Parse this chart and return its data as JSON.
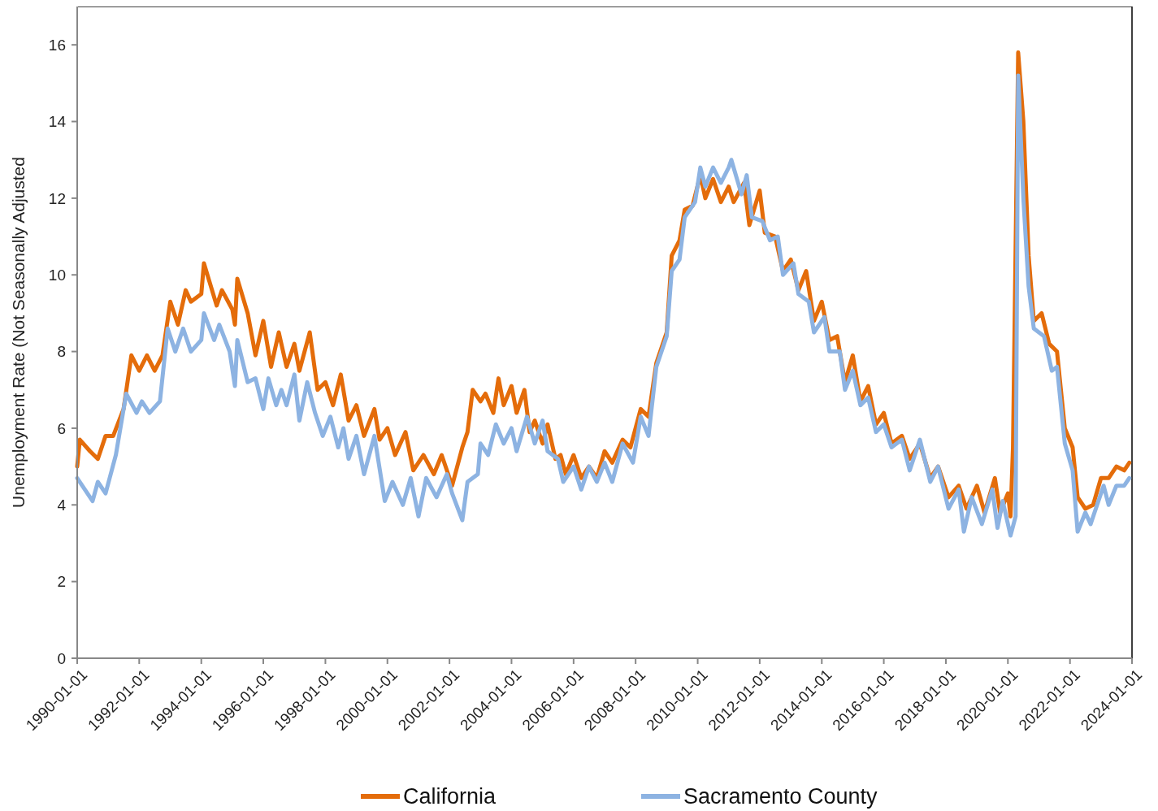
{
  "chart_data": {
    "type": "line",
    "ylabel": "Unemployment Rate (Not Seasonally Adjusted",
    "xlim": [
      "1990-01-01",
      "2024-01-01"
    ],
    "xticks": [
      "1990-01-01",
      "1992-01-01",
      "1994-01-01",
      "1996-01-01",
      "1998-01-01",
      "2000-01-01",
      "2002-01-01",
      "2004-01-01",
      "2006-01-01",
      "2008-01-01",
      "2010-01-01",
      "2012-01-01",
      "2014-01-01",
      "2016-01-01",
      "2018-01-01",
      "2020-01-01",
      "2022-01-01",
      "2024-01-01"
    ],
    "ylim": [
      0,
      17
    ],
    "yticks": [
      0,
      2,
      4,
      6,
      8,
      10,
      12,
      14,
      16
    ],
    "legend": "bottom",
    "series": [
      {
        "name": "California",
        "color": "#e46c0a",
        "x": [
          "1990-01",
          "1990-02",
          "1990-06",
          "1990-09",
          "1990-12",
          "1991-03",
          "1991-07",
          "1991-10",
          "1992-01",
          "1992-04",
          "1992-07",
          "1992-10",
          "1993-01",
          "1993-04",
          "1993-07",
          "1993-09",
          "1994-01",
          "1994-02",
          "1994-07",
          "1994-09",
          "1995-01",
          "1995-02",
          "1995-03",
          "1995-07",
          "1995-10",
          "1996-01",
          "1996-04",
          "1996-07",
          "1996-10",
          "1997-01",
          "1997-03",
          "1997-07",
          "1997-10",
          "1998-01",
          "1998-04",
          "1998-07",
          "1998-10",
          "1999-01",
          "1999-04",
          "1999-08",
          "1999-10",
          "2000-01",
          "2000-04",
          "2000-08",
          "2000-11",
          "2001-03",
          "2001-07",
          "2001-10",
          "2002-02",
          "2002-06",
          "2002-08",
          "2002-10",
          "2003-01",
          "2003-03",
          "2003-06",
          "2003-08",
          "2003-10",
          "2004-01",
          "2004-03",
          "2004-06",
          "2004-08",
          "2004-10",
          "2005-01",
          "2005-03",
          "2005-06",
          "2005-08",
          "2005-10",
          "2006-01",
          "2006-04",
          "2006-07",
          "2006-10",
          "2007-01",
          "2007-04",
          "2007-08",
          "2007-11",
          "2008-03",
          "2008-06",
          "2008-09",
          "2009-01",
          "2009-03",
          "2009-06",
          "2009-08",
          "2009-11",
          "2010-02",
          "2010-04",
          "2010-07",
          "2010-10",
          "2011-01",
          "2011-03",
          "2011-07",
          "2011-09",
          "2012-01",
          "2012-03",
          "2012-07",
          "2012-10",
          "2013-01",
          "2013-04",
          "2013-07",
          "2013-10",
          "2014-01",
          "2014-04",
          "2014-07",
          "2014-10",
          "2015-01",
          "2015-04",
          "2015-07",
          "2015-10",
          "2016-01",
          "2016-04",
          "2016-08",
          "2016-11",
          "2017-03",
          "2017-07",
          "2017-10",
          "2018-02",
          "2018-06",
          "2018-09",
          "2019-01",
          "2019-04",
          "2019-08",
          "2019-10",
          "2020-01",
          "2020-02",
          "2020-03",
          "2020-05",
          "2020-07",
          "2020-09",
          "2020-11",
          "2021-02",
          "2021-05",
          "2021-08",
          "2021-11",
          "2022-02",
          "2022-04",
          "2022-07",
          "2022-10",
          "2023-01",
          "2023-04",
          "2023-07",
          "2023-10",
          "2023-12"
        ],
        "values": [
          5.0,
          5.7,
          5.4,
          5.2,
          5.8,
          5.8,
          6.5,
          7.9,
          7.5,
          7.9,
          7.5,
          7.9,
          9.3,
          8.7,
          9.6,
          9.3,
          9.5,
          10.3,
          9.2,
          9.6,
          9.1,
          8.7,
          9.9,
          9.0,
          7.9,
          8.8,
          7.6,
          8.5,
          7.6,
          8.2,
          7.5,
          8.5,
          7.0,
          7.2,
          6.6,
          7.4,
          6.2,
          6.6,
          5.8,
          6.5,
          5.7,
          6.0,
          5.3,
          5.9,
          4.9,
          5.3,
          4.8,
          5.3,
          4.5,
          5.5,
          5.9,
          7.0,
          6.7,
          6.9,
          6.4,
          7.3,
          6.6,
          7.1,
          6.4,
          7.0,
          5.9,
          6.2,
          5.6,
          6.1,
          5.2,
          5.3,
          4.8,
          5.3,
          4.7,
          5.0,
          4.7,
          5.4,
          5.1,
          5.7,
          5.5,
          6.5,
          6.3,
          7.7,
          8.5,
          10.5,
          10.9,
          11.7,
          11.8,
          12.6,
          12.0,
          12.5,
          11.9,
          12.3,
          11.9,
          12.4,
          11.3,
          12.2,
          11.1,
          11.0,
          10.1,
          10.4,
          9.6,
          10.1,
          8.8,
          9.3,
          8.3,
          8.4,
          7.2,
          7.9,
          6.7,
          7.1,
          6.1,
          6.4,
          5.6,
          5.8,
          5.2,
          5.6,
          4.7,
          5.0,
          4.2,
          4.5,
          3.9,
          4.5,
          3.8,
          4.7,
          3.8,
          4.3,
          3.7,
          5.5,
          15.8,
          14.0,
          10.5,
          8.8,
          9.0,
          8.2,
          8.0,
          6.0,
          5.5,
          4.2,
          3.9,
          4.0,
          4.7,
          4.7,
          5.0,
          4.9,
          5.1
        ]
      },
      {
        "name": "Sacramento County",
        "color": "#8db3e2",
        "x": [
          "1990-01",
          "1990-04",
          "1990-07",
          "1990-09",
          "1990-12",
          "1991-04",
          "1991-08",
          "1991-12",
          "1992-02",
          "1992-05",
          "1992-09",
          "1992-12",
          "1993-03",
          "1993-06",
          "1993-09",
          "1994-01",
          "1994-02",
          "1994-06",
          "1994-08",
          "1994-12",
          "1995-02",
          "1995-03",
          "1995-07",
          "1995-10",
          "1996-01",
          "1996-03",
          "1996-06",
          "1996-08",
          "1996-10",
          "1997-01",
          "1997-03",
          "1997-06",
          "1997-09",
          "1997-12",
          "1998-03",
          "1998-06",
          "1998-08",
          "1998-10",
          "1999-01",
          "1999-04",
          "1999-08",
          "1999-12",
          "2000-03",
          "2000-07",
          "2000-10",
          "2001-01",
          "2001-04",
          "2001-08",
          "2001-12",
          "2002-02",
          "2002-06",
          "2002-08",
          "2002-12",
          "2003-01",
          "2003-04",
          "2003-07",
          "2003-10",
          "2004-01",
          "2004-03",
          "2004-07",
          "2004-10",
          "2005-01",
          "2005-03",
          "2005-07",
          "2005-09",
          "2006-01",
          "2006-04",
          "2006-07",
          "2006-10",
          "2007-01",
          "2007-04",
          "2007-08",
          "2007-12",
          "2008-03",
          "2008-06",
          "2008-09",
          "2009-01",
          "2009-03",
          "2009-06",
          "2009-08",
          "2009-12",
          "2010-02",
          "2010-04",
          "2010-07",
          "2010-10",
          "2011-01",
          "2011-02",
          "2011-06",
          "2011-08",
          "2011-10",
          "2012-02",
          "2012-05",
          "2012-08",
          "2012-10",
          "2013-02",
          "2013-04",
          "2013-08",
          "2013-10",
          "2014-02",
          "2014-04",
          "2014-08",
          "2014-10",
          "2015-01",
          "2015-04",
          "2015-07",
          "2015-10",
          "2016-01",
          "2016-04",
          "2016-08",
          "2016-11",
          "2017-03",
          "2017-07",
          "2017-10",
          "2018-02",
          "2018-06",
          "2018-08",
          "2018-11",
          "2019-03",
          "2019-07",
          "2019-09",
          "2019-11",
          "2020-02",
          "2020-04",
          "2020-05",
          "2020-07",
          "2020-09",
          "2020-11",
          "2021-03",
          "2021-06",
          "2021-08",
          "2021-11",
          "2022-02",
          "2022-04",
          "2022-07",
          "2022-09",
          "2022-11",
          "2023-02",
          "2023-04",
          "2023-07",
          "2023-10",
          "2023-12"
        ],
        "values": [
          4.7,
          4.4,
          4.1,
          4.6,
          4.3,
          5.3,
          6.9,
          6.4,
          6.7,
          6.4,
          6.7,
          8.6,
          8.0,
          8.6,
          8.0,
          8.3,
          9.0,
          8.3,
          8.7,
          8.0,
          7.1,
          8.3,
          7.2,
          7.3,
          6.5,
          7.3,
          6.6,
          7.0,
          6.6,
          7.4,
          6.2,
          7.2,
          6.4,
          5.8,
          6.3,
          5.5,
          6.0,
          5.2,
          5.8,
          4.8,
          5.8,
          4.1,
          4.6,
          4.0,
          4.7,
          3.7,
          4.7,
          4.2,
          4.8,
          4.3,
          3.6,
          4.6,
          4.8,
          5.6,
          5.3,
          6.1,
          5.6,
          6.0,
          5.4,
          6.3,
          5.6,
          6.2,
          5.4,
          5.2,
          4.6,
          5.0,
          4.4,
          5.0,
          4.6,
          5.1,
          4.6,
          5.6,
          5.1,
          6.3,
          5.8,
          7.6,
          8.4,
          10.1,
          10.4,
          11.5,
          11.9,
          12.8,
          12.3,
          12.8,
          12.4,
          12.8,
          13.0,
          12.1,
          12.6,
          11.5,
          11.4,
          10.9,
          11.0,
          10.0,
          10.3,
          9.5,
          9.3,
          8.5,
          8.9,
          8.0,
          8.0,
          7.0,
          7.5,
          6.6,
          6.8,
          5.9,
          6.1,
          5.5,
          5.7,
          4.9,
          5.7,
          4.6,
          5.0,
          3.9,
          4.4,
          3.3,
          4.2,
          3.5,
          4.4,
          3.4,
          4.1,
          3.2,
          3.7,
          15.2,
          12.0,
          9.7,
          8.6,
          8.4,
          7.5,
          7.6,
          5.6,
          4.9,
          3.3,
          3.8,
          3.5,
          3.9,
          4.5,
          4.0,
          4.5,
          4.5,
          4.7
        ]
      }
    ]
  }
}
